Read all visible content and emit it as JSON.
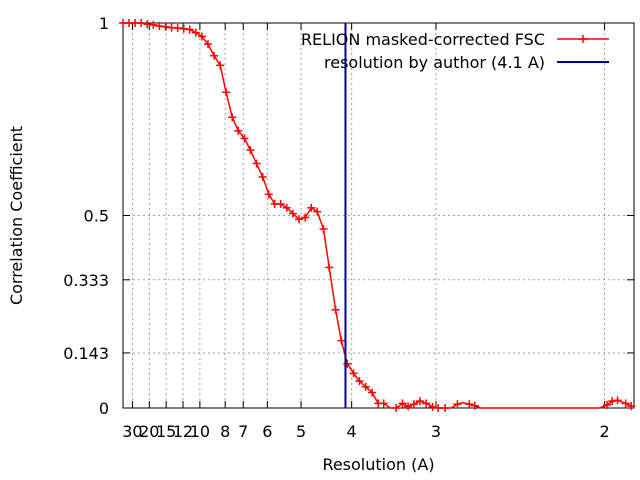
{
  "chart_data": {
    "type": "line",
    "xlabel": "Resolution (A)",
    "ylabel": "Correlation Coefficient",
    "x_axis_quantity": "spatial frequency 1/resolution (1/A)",
    "x_tick_labels": [
      "30",
      "20",
      "15",
      "12",
      "10",
      "8",
      "7",
      "6",
      "5",
      "4",
      "3",
      "2"
    ],
    "xlim_resolution_A": [
      41.67,
      1.89
    ],
    "y_ticks": [
      0,
      0.143,
      0.333,
      0.5,
      1
    ],
    "y_tick_labels": [
      "0",
      "0.143",
      "0.333",
      "0.5",
      "1"
    ],
    "ylim": [
      0,
      1
    ],
    "grid": true,
    "legend_placement": "top-right",
    "series": [
      {
        "name": "RELION masked-corrected FSC",
        "color": "#ff0000",
        "marker": "plus",
        "x_resolution_A": [
          41.67,
          33.33,
          27.78,
          23.81,
          20.83,
          18.52,
          16.67,
          15.15,
          13.89,
          12.82,
          11.9,
          11.11,
          10.42,
          9.8,
          9.26,
          8.77,
          8.33,
          7.94,
          7.58,
          7.25,
          6.94,
          6.67,
          6.41,
          6.17,
          5.95,
          5.75,
          5.56,
          5.38,
          5.21,
          5.05,
          4.9,
          4.76,
          4.63,
          4.5,
          4.39,
          4.27,
          4.17,
          4.07,
          3.97,
          3.88,
          3.79,
          3.7,
          3.62,
          3.55,
          3.47,
          3.4,
          3.33,
          3.27,
          3.21,
          3.15,
          3.09,
          3.03,
          2.98,
          2.92,
          2.87,
          2.82,
          2.78,
          2.73,
          2.69,
          2.65,
          2.6,
          2.56,
          2.52,
          2.49,
          2.45,
          2.42,
          2.38,
          2.35,
          2.32,
          2.29,
          2.26,
          2.23,
          2.2,
          2.17,
          2.14,
          2.12,
          2.09,
          2.06,
          2.04,
          2.02,
          1.99,
          1.97,
          1.95,
          1.92,
          1.9
        ],
        "y": [
          1.0,
          1.0,
          1.0,
          1.0,
          0.997,
          0.995,
          0.992,
          0.99,
          0.988,
          0.987,
          0.985,
          0.983,
          0.975,
          0.965,
          0.945,
          0.915,
          0.89,
          0.82,
          0.755,
          0.72,
          0.7,
          0.67,
          0.635,
          0.6,
          0.555,
          0.53,
          0.53,
          0.52,
          0.505,
          0.49,
          0.495,
          0.52,
          0.51,
          0.465,
          0.365,
          0.255,
          0.175,
          0.115,
          0.09,
          0.07,
          0.055,
          0.04,
          0.012,
          0.012,
          0.0,
          0.0,
          0.012,
          0.004,
          0.01,
          0.018,
          0.012,
          0.003,
          0.0,
          0.0,
          0.0,
          0.01,
          0.014,
          0.01,
          0.006,
          0.0,
          0.0,
          0.0,
          0.0,
          0.0,
          0.0,
          0.0,
          0.0,
          0.0,
          0.0,
          0.0,
          0.0,
          0.0,
          0.0,
          0.0,
          0.0,
          0.0,
          0.0,
          0.0,
          0.0,
          0.0,
          0.008,
          0.018,
          0.02,
          0.012,
          0.005
        ],
        "plotted": [
          true,
          true,
          true,
          true,
          true,
          true,
          true,
          true,
          true,
          true,
          true,
          true,
          true,
          true,
          true,
          true,
          true,
          true,
          true,
          true,
          true,
          true,
          true,
          true,
          true,
          true,
          true,
          true,
          true,
          true,
          true,
          true,
          true,
          true,
          true,
          true,
          true,
          true,
          true,
          true,
          true,
          true,
          true,
          true,
          false,
          true,
          true,
          true,
          true,
          true,
          true,
          true,
          true,
          true,
          false,
          true,
          false,
          true,
          true,
          false,
          false,
          false,
          false,
          false,
          false,
          false,
          false,
          false,
          false,
          false,
          false,
          false,
          false,
          false,
          false,
          false,
          false,
          false,
          false,
          false,
          true,
          true,
          true,
          true,
          true
        ]
      },
      {
        "name": "resolution by author (4.1 A)",
        "color": "#0000a0",
        "type": "vline",
        "x_resolution_A": 4.1
      }
    ]
  }
}
